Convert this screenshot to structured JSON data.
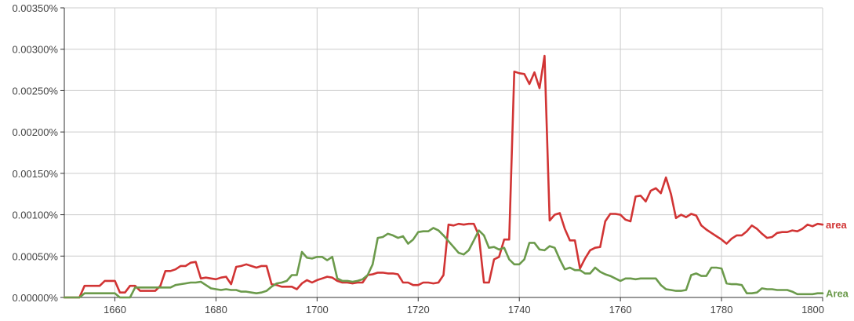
{
  "chart_data": {
    "type": "line",
    "title": "",
    "xlabel": "",
    "ylabel": "",
    "xlim": [
      1650,
      1800
    ],
    "ylim": [
      0,
      0.0035
    ],
    "grid": true,
    "legend": "series labels at right end of lines",
    "x_ticks": [
      1660,
      1680,
      1700,
      1720,
      1740,
      1760,
      1780,
      1800
    ],
    "x_tick_labels": [
      "1660",
      "1680",
      "1700",
      "1720",
      "1740",
      "1760",
      "1780",
      "1800"
    ],
    "y_ticks": [
      0,
      0.0005,
      0.001,
      0.0015,
      0.002,
      0.0025,
      0.003,
      0.0035
    ],
    "y_tick_labels": [
      "0.00000%",
      "0.00050%",
      "0.00100%",
      "0.00150%",
      "0.00200%",
      "0.00250%",
      "0.00300%",
      "0.00350%"
    ],
    "series": [
      {
        "name": "area",
        "color": "#d13434",
        "points": [
          [
            1650,
            0.0
          ],
          [
            1651,
            0.0
          ],
          [
            1652,
            0.0
          ],
          [
            1653,
            0.0
          ],
          [
            1654,
            0.00014
          ],
          [
            1655,
            0.00014
          ],
          [
            1656,
            0.00014
          ],
          [
            1657,
            0.00014
          ],
          [
            1658,
            0.0002
          ],
          [
            1659,
            0.0002
          ],
          [
            1660,
            0.0002
          ],
          [
            1661,
            6e-05
          ],
          [
            1662,
            6e-05
          ],
          [
            1663,
            0.00014
          ],
          [
            1664,
            0.00014
          ],
          [
            1665,
            8e-05
          ],
          [
            1666,
            8e-05
          ],
          [
            1667,
            8e-05
          ],
          [
            1668,
            8e-05
          ],
          [
            1669,
            0.00014
          ],
          [
            1670,
            0.00032
          ],
          [
            1671,
            0.00032
          ],
          [
            1672,
            0.00034
          ],
          [
            1673,
            0.00038
          ],
          [
            1674,
            0.00038
          ],
          [
            1675,
            0.00042
          ],
          [
            1676,
            0.00043
          ],
          [
            1677,
            0.00023
          ],
          [
            1678,
            0.00024
          ],
          [
            1679,
            0.00023
          ],
          [
            1680,
            0.00022
          ],
          [
            1681,
            0.00024
          ],
          [
            1682,
            0.00025
          ],
          [
            1683,
            0.00016
          ],
          [
            1684,
            0.00037
          ],
          [
            1685,
            0.00038
          ],
          [
            1686,
            0.0004
          ],
          [
            1687,
            0.00038
          ],
          [
            1688,
            0.00036
          ],
          [
            1689,
            0.00038
          ],
          [
            1690,
            0.00038
          ],
          [
            1691,
            0.00016
          ],
          [
            1692,
            0.00015
          ],
          [
            1693,
            0.00013
          ],
          [
            1694,
            0.00013
          ],
          [
            1695,
            0.00013
          ],
          [
            1696,
            0.0001
          ],
          [
            1697,
            0.00017
          ],
          [
            1698,
            0.00021
          ],
          [
            1699,
            0.00018
          ],
          [
            1700,
            0.00021
          ],
          [
            1701,
            0.00023
          ],
          [
            1702,
            0.00025
          ],
          [
            1703,
            0.00024
          ],
          [
            1704,
            0.0002
          ],
          [
            1705,
            0.00018
          ],
          [
            1706,
            0.00018
          ],
          [
            1707,
            0.00017
          ],
          [
            1708,
            0.00018
          ],
          [
            1709,
            0.00018
          ],
          [
            1710,
            0.00027
          ],
          [
            1711,
            0.00028
          ],
          [
            1712,
            0.0003
          ],
          [
            1713,
            0.0003
          ],
          [
            1714,
            0.00029
          ],
          [
            1715,
            0.00029
          ],
          [
            1716,
            0.00028
          ],
          [
            1717,
            0.00018
          ],
          [
            1718,
            0.00018
          ],
          [
            1719,
            0.00015
          ],
          [
            1720,
            0.00015
          ],
          [
            1721,
            0.00018
          ],
          [
            1722,
            0.00018
          ],
          [
            1723,
            0.00017
          ],
          [
            1724,
            0.00018
          ],
          [
            1725,
            0.00027
          ],
          [
            1726,
            0.00088
          ],
          [
            1727,
            0.00087
          ],
          [
            1728,
            0.00089
          ],
          [
            1729,
            0.00088
          ],
          [
            1730,
            0.00089
          ],
          [
            1731,
            0.00089
          ],
          [
            1732,
            0.00075
          ],
          [
            1733,
            0.00018
          ],
          [
            1734,
            0.00018
          ],
          [
            1735,
            0.00046
          ],
          [
            1736,
            0.00049
          ],
          [
            1737,
            0.0007
          ],
          [
            1738,
            0.0007
          ],
          [
            1739,
            0.00273
          ],
          [
            1740,
            0.00271
          ],
          [
            1741,
            0.0027
          ],
          [
            1742,
            0.00258
          ],
          [
            1743,
            0.00272
          ],
          [
            1744,
            0.00253
          ],
          [
            1745,
            0.00292
          ],
          [
            1746,
            0.00093
          ],
          [
            1747,
            0.001
          ],
          [
            1748,
            0.00102
          ],
          [
            1749,
            0.00083
          ],
          [
            1750,
            0.00069
          ],
          [
            1751,
            0.00069
          ],
          [
            1752,
            0.00035
          ],
          [
            1753,
            0.00047
          ],
          [
            1754,
            0.00057
          ],
          [
            1755,
            0.0006
          ],
          [
            1756,
            0.00061
          ],
          [
            1757,
            0.00092
          ],
          [
            1758,
            0.00101
          ],
          [
            1759,
            0.00101
          ],
          [
            1760,
            0.001
          ],
          [
            1761,
            0.00094
          ],
          [
            1762,
            0.00092
          ],
          [
            1763,
            0.00122
          ],
          [
            1764,
            0.00123
          ],
          [
            1765,
            0.00116
          ],
          [
            1766,
            0.00129
          ],
          [
            1767,
            0.00132
          ],
          [
            1768,
            0.00126
          ],
          [
            1769,
            0.00145
          ],
          [
            1770,
            0.00125
          ],
          [
            1771,
            0.00096
          ],
          [
            1772,
            0.001
          ],
          [
            1773,
            0.00097
          ],
          [
            1774,
            0.00101
          ],
          [
            1775,
            0.00099
          ],
          [
            1776,
            0.00087
          ],
          [
            1777,
            0.00082
          ],
          [
            1778,
            0.00078
          ],
          [
            1779,
            0.00074
          ],
          [
            1780,
            0.0007
          ],
          [
            1781,
            0.00065
          ],
          [
            1782,
            0.00071
          ],
          [
            1783,
            0.00075
          ],
          [
            1784,
            0.00075
          ],
          [
            1785,
            0.0008
          ],
          [
            1786,
            0.00087
          ],
          [
            1787,
            0.00083
          ],
          [
            1788,
            0.00077
          ],
          [
            1789,
            0.00072
          ],
          [
            1790,
            0.00073
          ],
          [
            1791,
            0.00078
          ],
          [
            1792,
            0.00079
          ],
          [
            1793,
            0.00079
          ],
          [
            1794,
            0.00081
          ],
          [
            1795,
            0.0008
          ],
          [
            1796,
            0.00083
          ],
          [
            1797,
            0.00088
          ],
          [
            1798,
            0.00086
          ],
          [
            1799,
            0.00089
          ],
          [
            1800,
            0.00088
          ]
        ]
      },
      {
        "name": "Area",
        "color": "#6b9a4b",
        "points": [
          [
            1650,
            0.0
          ],
          [
            1651,
            0.0
          ],
          [
            1652,
            0.0
          ],
          [
            1653,
            0.0
          ],
          [
            1654,
            5e-05
          ],
          [
            1655,
            5e-05
          ],
          [
            1656,
            5e-05
          ],
          [
            1657,
            5e-05
          ],
          [
            1658,
            5e-05
          ],
          [
            1659,
            5e-05
          ],
          [
            1660,
            5e-05
          ],
          [
            1661,
            0.0
          ],
          [
            1662,
            0.0
          ],
          [
            1663,
            0.0
          ],
          [
            1664,
            0.00012
          ],
          [
            1665,
            0.00012
          ],
          [
            1666,
            0.00012
          ],
          [
            1667,
            0.00012
          ],
          [
            1668,
            0.00012
          ],
          [
            1669,
            0.00012
          ],
          [
            1670,
            0.00012
          ],
          [
            1671,
            0.00012
          ],
          [
            1672,
            0.00015
          ],
          [
            1673,
            0.00016
          ],
          [
            1674,
            0.00017
          ],
          [
            1675,
            0.00018
          ],
          [
            1676,
            0.00018
          ],
          [
            1677,
            0.00019
          ],
          [
            1678,
            0.00015
          ],
          [
            1679,
            0.00011
          ],
          [
            1680,
            0.0001
          ],
          [
            1681,
            9e-05
          ],
          [
            1682,
            0.0001
          ],
          [
            1683,
            9e-05
          ],
          [
            1684,
            9e-05
          ],
          [
            1685,
            7e-05
          ],
          [
            1686,
            7e-05
          ],
          [
            1687,
            6e-05
          ],
          [
            1688,
            5e-05
          ],
          [
            1689,
            6e-05
          ],
          [
            1690,
            8e-05
          ],
          [
            1691,
            0.00013
          ],
          [
            1692,
            0.00017
          ],
          [
            1693,
            0.00018
          ],
          [
            1694,
            0.0002
          ],
          [
            1695,
            0.00027
          ],
          [
            1696,
            0.00027
          ],
          [
            1697,
            0.00055
          ],
          [
            1698,
            0.00048
          ],
          [
            1699,
            0.00047
          ],
          [
            1700,
            0.00049
          ],
          [
            1701,
            0.00049
          ],
          [
            1702,
            0.00045
          ],
          [
            1703,
            0.00049
          ],
          [
            1704,
            0.00023
          ],
          [
            1705,
            0.0002
          ],
          [
            1706,
            0.0002
          ],
          [
            1707,
            0.00019
          ],
          [
            1708,
            0.0002
          ],
          [
            1709,
            0.00022
          ],
          [
            1710,
            0.00027
          ],
          [
            1711,
            0.0004
          ],
          [
            1712,
            0.00072
          ],
          [
            1713,
            0.00073
          ],
          [
            1714,
            0.00077
          ],
          [
            1715,
            0.00075
          ],
          [
            1716,
            0.00072
          ],
          [
            1717,
            0.00074
          ],
          [
            1718,
            0.00065
          ],
          [
            1719,
            0.0007
          ],
          [
            1720,
            0.00079
          ],
          [
            1721,
            0.0008
          ],
          [
            1722,
            0.0008
          ],
          [
            1723,
            0.00084
          ],
          [
            1724,
            0.00081
          ],
          [
            1725,
            0.00075
          ],
          [
            1726,
            0.00068
          ],
          [
            1727,
            0.00061
          ],
          [
            1728,
            0.00054
          ],
          [
            1729,
            0.00052
          ],
          [
            1730,
            0.00057
          ],
          [
            1731,
            0.00069
          ],
          [
            1732,
            0.00081
          ],
          [
            1733,
            0.00075
          ],
          [
            1734,
            0.0006
          ],
          [
            1735,
            0.00061
          ],
          [
            1736,
            0.00058
          ],
          [
            1737,
            0.0006
          ],
          [
            1738,
            0.00046
          ],
          [
            1739,
            0.0004
          ],
          [
            1740,
            0.0004
          ],
          [
            1741,
            0.00046
          ],
          [
            1742,
            0.00066
          ],
          [
            1743,
            0.00066
          ],
          [
            1744,
            0.00058
          ],
          [
            1745,
            0.00057
          ],
          [
            1746,
            0.00062
          ],
          [
            1747,
            0.0006
          ],
          [
            1748,
            0.00046
          ],
          [
            1749,
            0.00034
          ],
          [
            1750,
            0.00036
          ],
          [
            1751,
            0.00033
          ],
          [
            1752,
            0.00033
          ],
          [
            1753,
            0.00029
          ],
          [
            1754,
            0.00029
          ],
          [
            1755,
            0.00036
          ],
          [
            1756,
            0.00031
          ],
          [
            1757,
            0.00028
          ],
          [
            1758,
            0.00026
          ],
          [
            1759,
            0.00023
          ],
          [
            1760,
            0.0002
          ],
          [
            1761,
            0.00023
          ],
          [
            1762,
            0.00023
          ],
          [
            1763,
            0.00022
          ],
          [
            1764,
            0.00023
          ],
          [
            1765,
            0.00023
          ],
          [
            1766,
            0.00023
          ],
          [
            1767,
            0.00023
          ],
          [
            1768,
            0.00015
          ],
          [
            1769,
            0.0001
          ],
          [
            1770,
            9e-05
          ],
          [
            1771,
            8e-05
          ],
          [
            1772,
            8e-05
          ],
          [
            1773,
            9e-05
          ],
          [
            1774,
            0.00027
          ],
          [
            1775,
            0.00029
          ],
          [
            1776,
            0.00026
          ],
          [
            1777,
            0.00026
          ],
          [
            1778,
            0.00036
          ],
          [
            1779,
            0.00036
          ],
          [
            1780,
            0.00035
          ],
          [
            1781,
            0.00017
          ],
          [
            1782,
            0.00016
          ],
          [
            1783,
            0.00016
          ],
          [
            1784,
            0.00015
          ],
          [
            1785,
            5e-05
          ],
          [
            1786,
            5e-05
          ],
          [
            1787,
            6e-05
          ],
          [
            1788,
            0.00011
          ],
          [
            1789,
            0.0001
          ],
          [
            1790,
            0.0001
          ],
          [
            1791,
            9e-05
          ],
          [
            1792,
            9e-05
          ],
          [
            1793,
            9e-05
          ],
          [
            1794,
            7e-05
          ],
          [
            1795,
            4e-05
          ],
          [
            1796,
            4e-05
          ],
          [
            1797,
            4e-05
          ],
          [
            1798,
            4e-05
          ],
          [
            1799,
            5e-05
          ],
          [
            1800,
            5e-05
          ]
        ]
      }
    ]
  }
}
